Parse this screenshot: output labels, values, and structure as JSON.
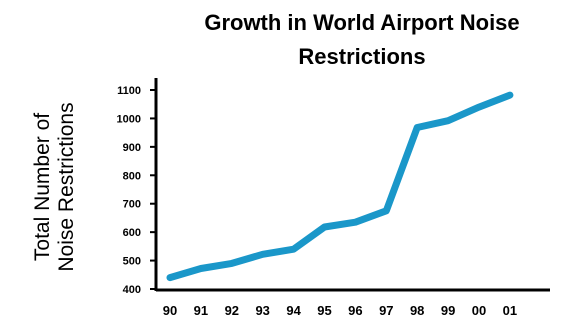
{
  "chart_data": {
    "type": "line",
    "title_lines": [
      "Growth in World Airport Noise",
      "Restrictions"
    ],
    "ylabel_lines": [
      "Total Number of",
      "Noise Restrictions"
    ],
    "xlabel": "",
    "categories": [
      "90",
      "91",
      "92",
      "93",
      "94",
      "95",
      "96",
      "97",
      "98",
      "99",
      "00",
      "01"
    ],
    "values": [
      440,
      472,
      490,
      522,
      540,
      618,
      635,
      675,
      968,
      992,
      1040,
      1082
    ],
    "yticks": [
      400,
      500,
      600,
      700,
      800,
      900,
      1000,
      1100
    ],
    "ylim": [
      400,
      1120
    ],
    "grid": false,
    "legend": "none",
    "line_color": "#1a97c9",
    "axis_color": "#000000"
  }
}
